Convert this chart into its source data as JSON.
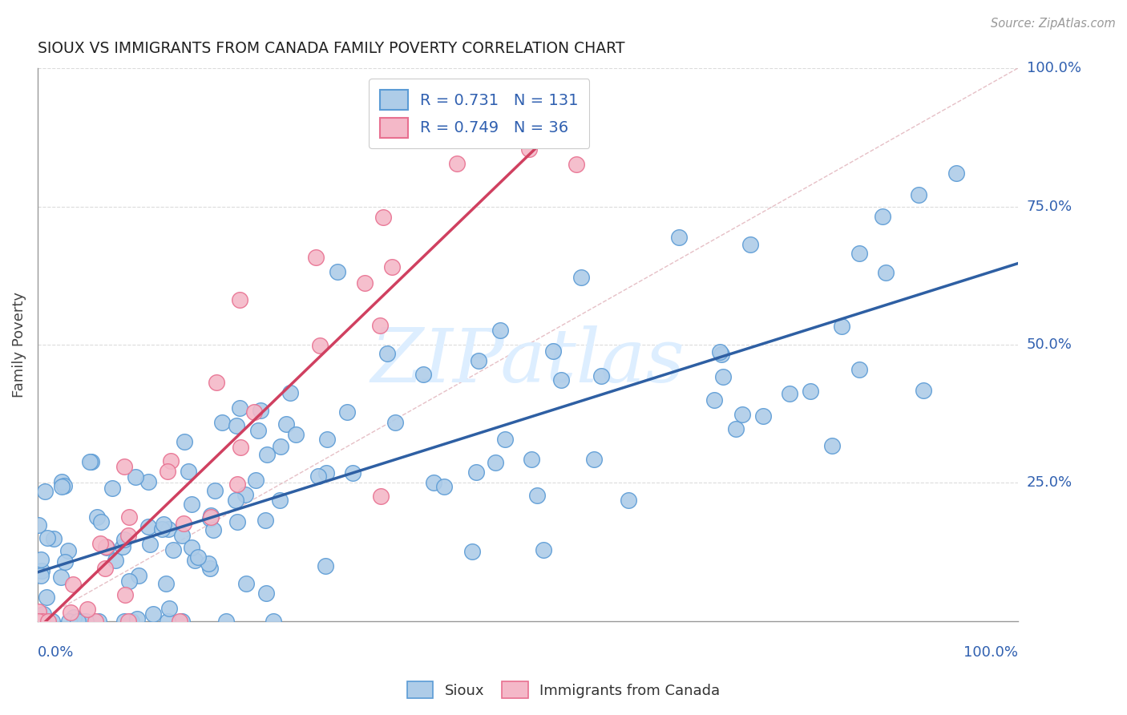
{
  "title": "SIOUX VS IMMIGRANTS FROM CANADA FAMILY POVERTY CORRELATION CHART",
  "source": "Source: ZipAtlas.com",
  "ylabel": "Family Poverty",
  "color_sioux_fill": "#AECCE8",
  "color_sioux_edge": "#5B9BD5",
  "color_immig_fill": "#F4B8C8",
  "color_immig_edge": "#E87090",
  "color_line_sioux": "#2E5FA3",
  "color_line_immig": "#D04060",
  "color_diag": "#E0B0B8",
  "color_grid": "#CCCCCC",
  "color_tick_label": "#3060B0",
  "color_axis": "#999999",
  "background": "#FFFFFF",
  "watermark_text": "ZIPatlas",
  "watermark_color": "#DDEEFF",
  "legend_label1": "R = 0.731   N = 131",
  "legend_label2": "R = 0.749   N = 36",
  "bottom_legend1": "Sioux",
  "bottom_legend2": "Immigrants from Canada"
}
